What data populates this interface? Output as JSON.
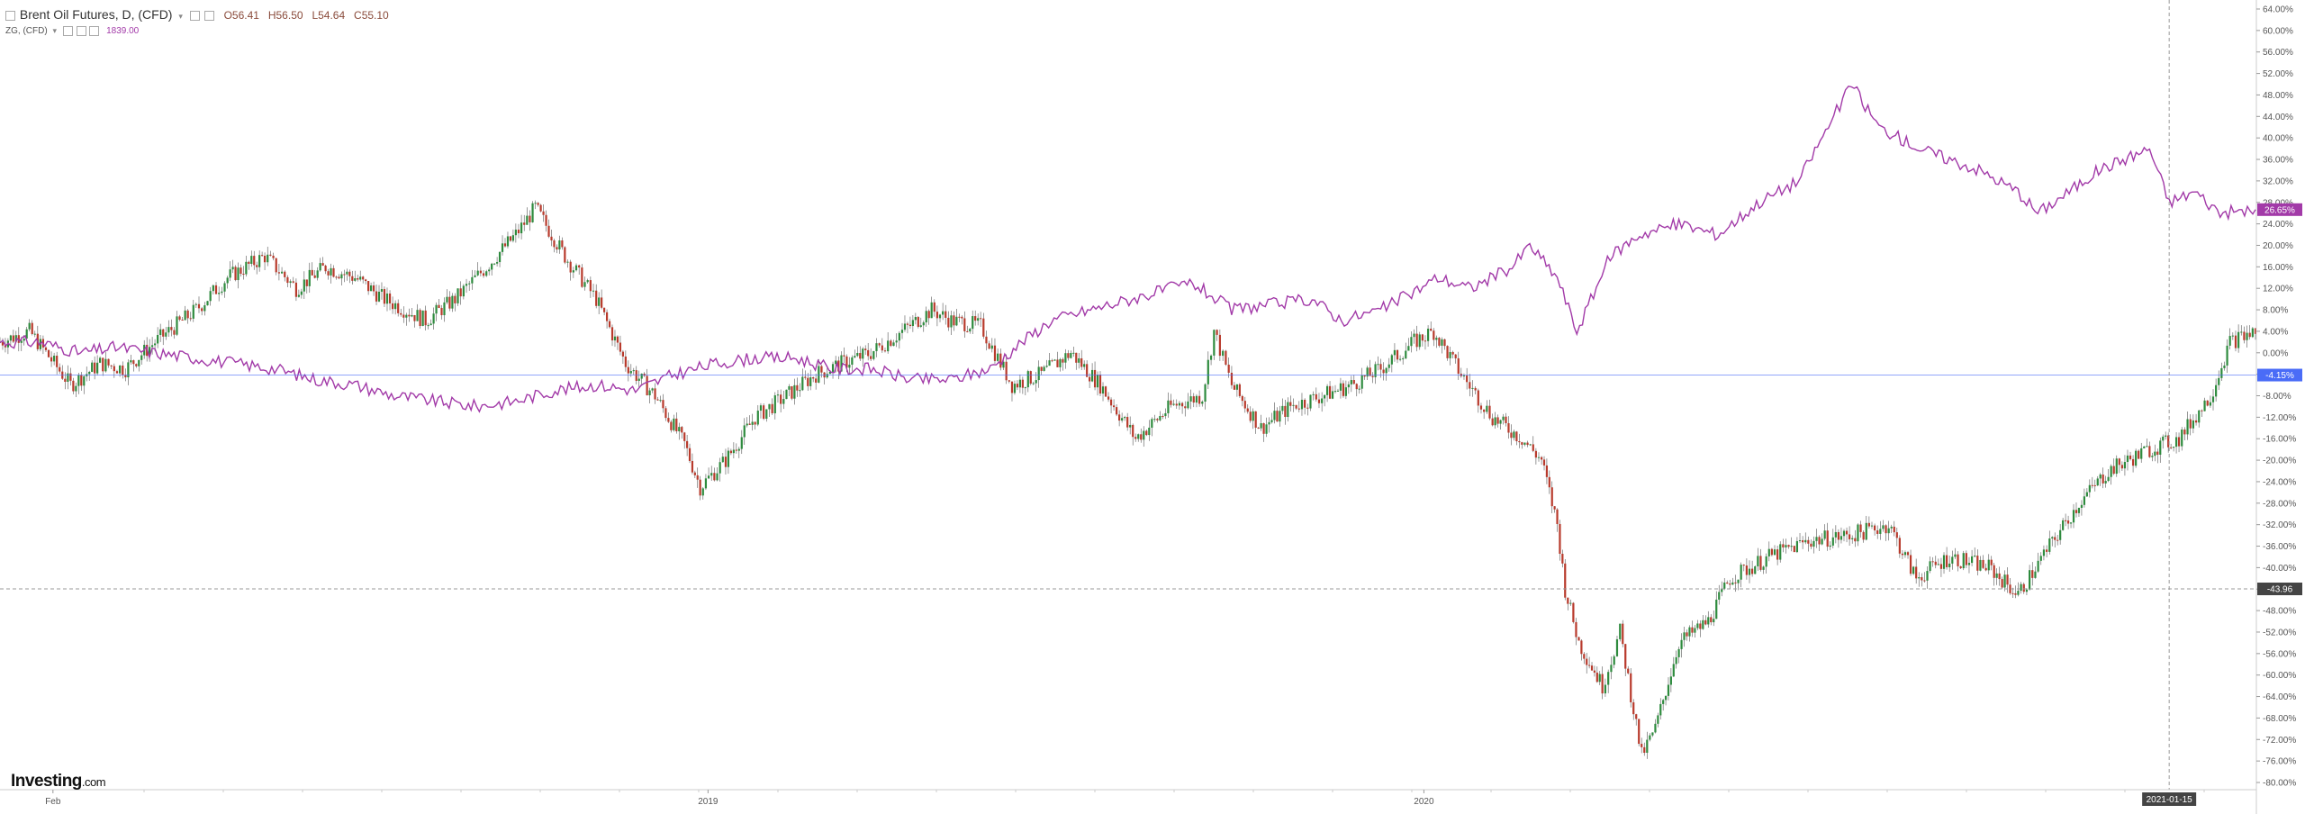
{
  "legend": {
    "main_title": "Brent Oil Futures, D, (CFD)",
    "open": "O56.41",
    "high": "H56.50",
    "low": "L54.64",
    "close": "C55.10",
    "compare_title": "ZG, (CFD)",
    "compare_value": "1839.00"
  },
  "brand": {
    "name": "Investing",
    "domain": ".com"
  },
  "colors": {
    "up_candle": "#2e8b3e",
    "down_candle": "#b83a2c",
    "compare_line": "#a23aa8",
    "baseline": "#4a6cf7",
    "crosshair": "#999999"
  },
  "chart_data": {
    "type": "line",
    "subtype": "percent-comparison",
    "y_unit": "%",
    "y_range": [
      -80,
      64
    ],
    "y_ticks": [
      64,
      60,
      56,
      52,
      48,
      44,
      40,
      36,
      32,
      28,
      24,
      20,
      16,
      12,
      8,
      4,
      0,
      -4,
      -8,
      -12,
      -16,
      -20,
      -24,
      -28,
      -32,
      -36,
      -40,
      -44,
      -48,
      -52,
      -56,
      -60,
      -64,
      -68,
      -72,
      -76,
      -80
    ],
    "y_tick_labels": [
      "64.00%",
      "60.00%",
      "56.00%",
      "52.00%",
      "48.00%",
      "44.00%",
      "40.00%",
      "36.00%",
      "32.00%",
      "28.00%",
      "24.00%",
      "20.00%",
      "16.00%",
      "12.00%",
      "8.00%",
      "4.00%",
      "0.00%",
      "-4.00%",
      "-8.00%",
      "-12.00%",
      "-16.00%",
      "-20.00%",
      "-24.00%",
      "-28.00%",
      "-32.00%",
      "-36.00%",
      "-40.00%",
      "-44.00%",
      "-48.00%",
      "-52.00%",
      "-56.00%",
      "-60.00%",
      "-64.00%",
      "-68.00%",
      "-72.00%",
      "-76.00%",
      "-80.00%"
    ],
    "x_range": [
      "2018-01-05",
      "2021-02-28"
    ],
    "x_tick_labels": [
      {
        "date": "2018-02-01",
        "label": "Feb"
      },
      {
        "date": "2019-01-01",
        "label": "2019"
      },
      {
        "date": "2020-01-01",
        "label": "2020"
      }
    ],
    "grid": false,
    "series": [
      {
        "name": "Brent Oil Futures, D, (CFD)",
        "style": "candlestick",
        "points": [
          [
            "2018-01-05",
            2
          ],
          [
            "2018-01-20",
            4
          ],
          [
            "2018-02-10",
            -6
          ],
          [
            "2018-02-25",
            -2
          ],
          [
            "2018-03-10",
            -3
          ],
          [
            "2018-03-25",
            2
          ],
          [
            "2018-04-15",
            8
          ],
          [
            "2018-05-01",
            14
          ],
          [
            "2018-05-20",
            18
          ],
          [
            "2018-06-05",
            12
          ],
          [
            "2018-06-20",
            16
          ],
          [
            "2018-07-05",
            14
          ],
          [
            "2018-07-20",
            10
          ],
          [
            "2018-08-10",
            6
          ],
          [
            "2018-08-25",
            10
          ],
          [
            "2018-09-10",
            16
          ],
          [
            "2018-09-25",
            22
          ],
          [
            "2018-10-05",
            27
          ],
          [
            "2018-10-20",
            18
          ],
          [
            "2018-11-05",
            10
          ],
          [
            "2018-11-20",
            -2
          ],
          [
            "2018-12-05",
            -8
          ],
          [
            "2018-12-20",
            -17
          ],
          [
            "2018-12-28",
            -25
          ],
          [
            "2019-01-10",
            -20
          ],
          [
            "2019-01-25",
            -12
          ],
          [
            "2019-02-10",
            -8
          ],
          [
            "2019-02-25",
            -4
          ],
          [
            "2019-03-10",
            -2
          ],
          [
            "2019-03-25",
            0
          ],
          [
            "2019-04-10",
            4
          ],
          [
            "2019-04-25",
            8
          ],
          [
            "2019-05-05",
            6
          ],
          [
            "2019-05-20",
            5
          ],
          [
            "2019-06-05",
            -6
          ],
          [
            "2019-06-20",
            -4
          ],
          [
            "2019-07-05",
            0
          ],
          [
            "2019-07-20",
            -6
          ],
          [
            "2019-08-07",
            -16
          ],
          [
            "2019-08-25",
            -10
          ],
          [
            "2019-09-10",
            -8
          ],
          [
            "2019-09-16",
            4
          ],
          [
            "2019-09-25",
            -6
          ],
          [
            "2019-10-10",
            -14
          ],
          [
            "2019-10-25",
            -10
          ],
          [
            "2019-11-10",
            -8
          ],
          [
            "2019-11-25",
            -6
          ],
          [
            "2019-12-10",
            -3
          ],
          [
            "2019-12-27",
            2
          ],
          [
            "2020-01-06",
            4
          ],
          [
            "2020-01-20",
            -4
          ],
          [
            "2020-02-05",
            -12
          ],
          [
            "2020-02-20",
            -16
          ],
          [
            "2020-03-01",
            -20
          ],
          [
            "2020-03-09",
            -32
          ],
          [
            "2020-03-13",
            -44
          ],
          [
            "2020-03-20",
            -54
          ],
          [
            "2020-04-01",
            -62
          ],
          [
            "2020-04-10",
            -52
          ],
          [
            "2020-04-21",
            -75
          ],
          [
            "2020-04-28",
            -70
          ],
          [
            "2020-05-10",
            -54
          ],
          [
            "2020-05-25",
            -50
          ],
          [
            "2020-06-05",
            -42
          ],
          [
            "2020-06-25",
            -38
          ],
          [
            "2020-07-15",
            -35
          ],
          [
            "2020-08-05",
            -34
          ],
          [
            "2020-08-25",
            -32
          ],
          [
            "2020-09-08",
            -42
          ],
          [
            "2020-09-25",
            -38
          ],
          [
            "2020-10-15",
            -40
          ],
          [
            "2020-10-30",
            -45
          ],
          [
            "2020-11-15",
            -36
          ],
          [
            "2020-11-30",
            -28
          ],
          [
            "2020-12-15",
            -22
          ],
          [
            "2021-01-05",
            -18
          ],
          [
            "2021-01-20",
            -16
          ],
          [
            "2021-02-05",
            -8
          ],
          [
            "2021-02-15",
            2
          ],
          [
            "2021-02-28",
            4
          ]
        ]
      },
      {
        "name": "ZG, (CFD)",
        "style": "line",
        "points": [
          [
            "2018-01-05",
            2
          ],
          [
            "2018-01-25",
            2
          ],
          [
            "2018-02-15",
            0
          ],
          [
            "2018-03-05",
            1
          ],
          [
            "2018-03-25",
            0
          ],
          [
            "2018-04-15",
            -1
          ],
          [
            "2018-05-05",
            -2
          ],
          [
            "2018-05-25",
            -3
          ],
          [
            "2018-06-15",
            -5
          ],
          [
            "2018-07-05",
            -6
          ],
          [
            "2018-07-25",
            -8
          ],
          [
            "2018-08-15",
            -9
          ],
          [
            "2018-09-05",
            -10
          ],
          [
            "2018-09-25",
            -9
          ],
          [
            "2018-10-15",
            -7
          ],
          [
            "2018-11-05",
            -6
          ],
          [
            "2018-11-25",
            -7
          ],
          [
            "2018-12-15",
            -4
          ],
          [
            "2019-01-05",
            -2
          ],
          [
            "2019-01-25",
            -1
          ],
          [
            "2019-02-15",
            -1
          ],
          [
            "2019-03-05",
            -3
          ],
          [
            "2019-03-25",
            -3
          ],
          [
            "2019-04-15",
            -5
          ],
          [
            "2019-05-05",
            -5
          ],
          [
            "2019-05-25",
            -3
          ],
          [
            "2019-06-10",
            2
          ],
          [
            "2019-06-25",
            6
          ],
          [
            "2019-07-15",
            8
          ],
          [
            "2019-08-05",
            10
          ],
          [
            "2019-08-25",
            12
          ],
          [
            "2019-09-05",
            13
          ],
          [
            "2019-09-25",
            8
          ],
          [
            "2019-10-15",
            9
          ],
          [
            "2019-11-05",
            10
          ],
          [
            "2019-11-20",
            6
          ],
          [
            "2019-12-10",
            8
          ],
          [
            "2019-12-30",
            12
          ],
          [
            "2020-01-08",
            14
          ],
          [
            "2020-01-25",
            12
          ],
          [
            "2020-02-15",
            16
          ],
          [
            "2020-02-24",
            20
          ],
          [
            "2020-03-09",
            14
          ],
          [
            "2020-03-19",
            4
          ],
          [
            "2020-04-05",
            18
          ],
          [
            "2020-04-20",
            22
          ],
          [
            "2020-05-10",
            24
          ],
          [
            "2020-05-30",
            22
          ],
          [
            "2020-06-20",
            28
          ],
          [
            "2020-07-10",
            32
          ],
          [
            "2020-07-28",
            44
          ],
          [
            "2020-08-06",
            50
          ],
          [
            "2020-08-20",
            42
          ],
          [
            "2020-09-10",
            38
          ],
          [
            "2020-09-25",
            36
          ],
          [
            "2020-10-10",
            34
          ],
          [
            "2020-10-30",
            30
          ],
          [
            "2020-11-09",
            26
          ],
          [
            "2020-11-25",
            30
          ],
          [
            "2020-12-10",
            34
          ],
          [
            "2021-01-05",
            38
          ],
          [
            "2021-01-15",
            28
          ],
          [
            "2021-01-28",
            30
          ],
          [
            "2021-02-10",
            26
          ],
          [
            "2021-02-28",
            26.65
          ]
        ]
      }
    ],
    "price_markers": [
      {
        "value": -4.15,
        "label": "-4.15%"
      },
      {
        "value": 26.65,
        "label": "26.65%"
      },
      {
        "value": -43.96,
        "label": "-43.96"
      }
    ],
    "crosshair": {
      "date": "2021-01-15",
      "label": "2021-01-15",
      "value": -43.96
    }
  }
}
